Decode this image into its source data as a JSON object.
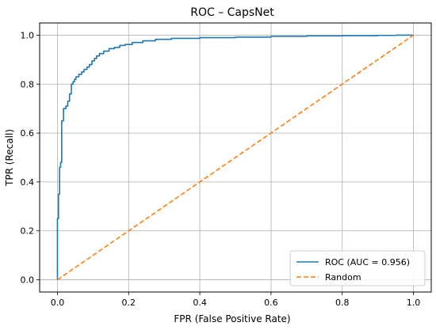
{
  "chart_data": {
    "type": "line",
    "title": "ROC – CapsNet",
    "xlabel": "FPR (False Positive Rate)",
    "ylabel": "TPR (Recall)",
    "xlim": [
      -0.05,
      1.05
    ],
    "ylim": [
      -0.05,
      1.05
    ],
    "xticks": [
      0.0,
      0.2,
      0.4,
      0.6,
      0.8,
      1.0
    ],
    "yticks": [
      0.0,
      0.2,
      0.4,
      0.6,
      0.8,
      1.0
    ],
    "xtick_labels": [
      "0.0",
      "0.2",
      "0.4",
      "0.6",
      "0.8",
      "1.0"
    ],
    "ytick_labels": [
      "0.0",
      "0.2",
      "0.4",
      "0.6",
      "0.8",
      "1.0"
    ],
    "grid": true,
    "legend_position": "lower-right",
    "series": [
      {
        "name": "ROC (AUC = 0.956)",
        "color": "#1f77b4",
        "style": "solid",
        "x": [
          0.0,
          0.0,
          0.003,
          0.003,
          0.006,
          0.006,
          0.009,
          0.009,
          0.012,
          0.012,
          0.017,
          0.017,
          0.021,
          0.021,
          0.024,
          0.024,
          0.029,
          0.029,
          0.034,
          0.034,
          0.039,
          0.039,
          0.044,
          0.044,
          0.048,
          0.048,
          0.052,
          0.052,
          0.06,
          0.06,
          0.068,
          0.068,
          0.075,
          0.075,
          0.083,
          0.083,
          0.09,
          0.09,
          0.097,
          0.097,
          0.104,
          0.104,
          0.11,
          0.11,
          0.118,
          0.118,
          0.13,
          0.13,
          0.145,
          0.145,
          0.16,
          0.16,
          0.175,
          0.175,
          0.19,
          0.19,
          0.21,
          0.21,
          0.24,
          0.24,
          0.275,
          0.275,
          0.32,
          0.32,
          0.4,
          0.4,
          0.5,
          0.5,
          0.6,
          0.6,
          0.7,
          0.7,
          0.8,
          0.8,
          0.9,
          0.9,
          0.95,
          0.95,
          1.0
        ],
        "y": [
          0.0,
          0.25,
          0.25,
          0.35,
          0.35,
          0.46,
          0.46,
          0.48,
          0.48,
          0.65,
          0.65,
          0.7,
          0.7,
          0.7,
          0.7,
          0.71,
          0.71,
          0.73,
          0.73,
          0.76,
          0.76,
          0.8,
          0.8,
          0.81,
          0.81,
          0.82,
          0.82,
          0.83,
          0.83,
          0.84,
          0.84,
          0.85,
          0.85,
          0.86,
          0.86,
          0.87,
          0.87,
          0.88,
          0.88,
          0.895,
          0.895,
          0.905,
          0.905,
          0.915,
          0.915,
          0.925,
          0.925,
          0.935,
          0.935,
          0.945,
          0.945,
          0.95,
          0.95,
          0.958,
          0.958,
          0.962,
          0.962,
          0.97,
          0.97,
          0.977,
          0.977,
          0.983,
          0.983,
          0.987,
          0.987,
          0.99,
          0.99,
          0.992,
          0.992,
          0.995,
          0.995,
          0.997,
          0.997,
          0.998,
          0.998,
          0.999,
          0.999,
          1.0,
          1.0
        ]
      },
      {
        "name": "Random",
        "color": "#ff7f0e",
        "style": "dashed",
        "x": [
          0.0,
          1.0
        ],
        "y": [
          0.0,
          1.0
        ]
      }
    ]
  }
}
